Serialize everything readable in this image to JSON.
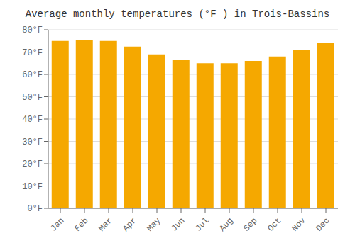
{
  "chart_data": {
    "type": "bar",
    "title": "Average monthly temperatures (°F ) in Trois-Bassins",
    "categories": [
      "Jan",
      "Feb",
      "Mar",
      "Apr",
      "May",
      "Jun",
      "Jul",
      "Aug",
      "Sep",
      "Oct",
      "Nov",
      "Dec"
    ],
    "values": [
      75.0,
      75.5,
      75.0,
      72.5,
      69.0,
      66.5,
      65.0,
      65.0,
      66.0,
      68.0,
      71.0,
      74.0
    ],
    "color": "#F5A800",
    "ylim": [
      0,
      80
    ],
    "yticks": [
      {
        "value": 0,
        "label": "0°F"
      },
      {
        "value": 10,
        "label": "10°F"
      },
      {
        "value": 20,
        "label": "20°F"
      },
      {
        "value": 30,
        "label": "30°F"
      },
      {
        "value": 40,
        "label": "40°F"
      },
      {
        "value": 50,
        "label": "50°F"
      },
      {
        "value": 60,
        "label": "60°F"
      },
      {
        "value": 70,
        "label": "70°F"
      },
      {
        "value": 80,
        "label": "80°F"
      }
    ],
    "grid": true
  }
}
